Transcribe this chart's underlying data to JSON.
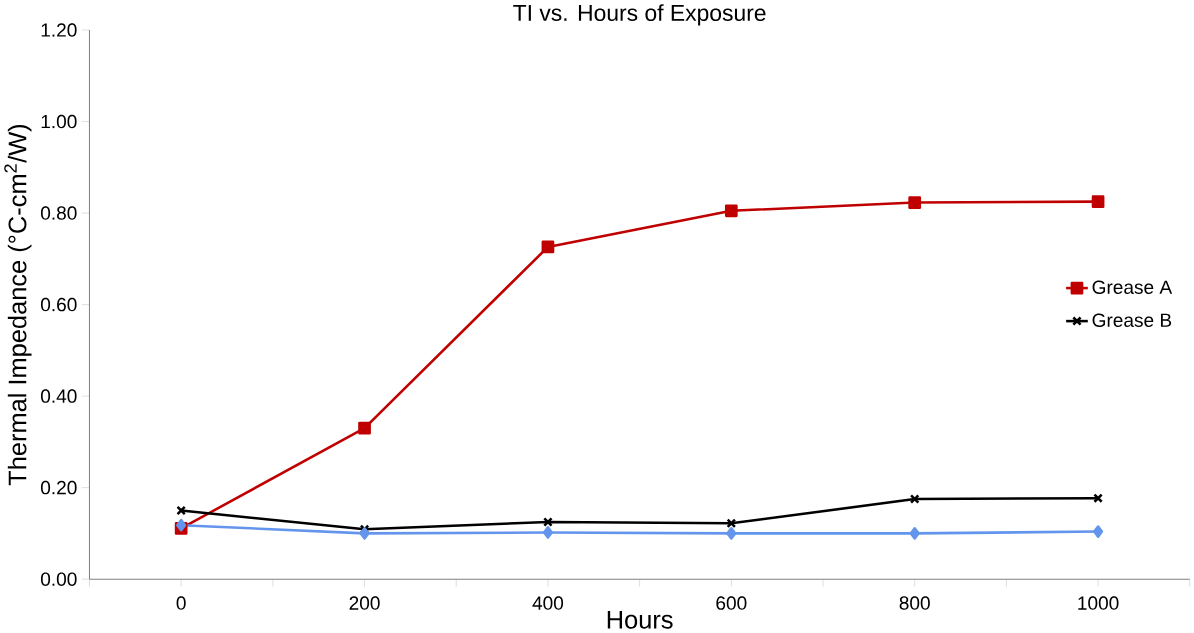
{
  "chart_data": {
    "type": "line",
    "title": "TI vs. Hours of Exposure",
    "xlabel": "Hours",
    "ylabel": "Thermal Impedance (°C-cm$^{2}$/W)",
    "x": [
      0,
      200,
      400,
      600,
      800,
      1000
    ],
    "series": [
      {
        "name": "Grease A",
        "color": "#c00000",
        "marker": "square",
        "values": [
          0.111,
          0.33,
          0.726,
          0.805,
          0.823,
          0.825
        ]
      },
      {
        "name": "Grease B",
        "color": "#000000",
        "marker": "cross",
        "values": [
          0.15,
          0.109,
          0.125,
          0.122,
          0.175,
          0.177
        ]
      },
      {
        "color": "#6495ed",
        "marker": "diamond",
        "values": [
          0.118,
          0.1,
          0.102,
          0.1,
          0.1,
          0.104
        ]
      }
    ],
    "xlim": [
      -100,
      1100
    ],
    "ylim": [
      0,
      1.2
    ],
    "xticks": [
      {
        "value": -100,
        "label": null
      },
      0,
      {
        "value": 100,
        "label": null
      },
      200,
      {
        "value": 300,
        "label": null
      },
      400,
      {
        "value": 500,
        "label": null
      },
      600,
      {
        "value": 700,
        "label": null
      },
      800,
      {
        "value": 900,
        "label": null
      },
      1000,
      {
        "value": 1100,
        "label": null
      }
    ],
    "yticks": [
      {
        "value": 0,
        "label": "0.00"
      },
      {
        "value": 0.2,
        "label": "0.20"
      },
      {
        "value": 0.4,
        "label": "0.40"
      },
      {
        "value": 0.6,
        "label": "0.60"
      },
      {
        "value": 0.8,
        "label": "0.80"
      },
      {
        "value": 1.0,
        "label": "1.00"
      },
      {
        "value": 1.2,
        "label": "1.20"
      }
    ],
    "grid": false,
    "legend": "right",
    "line_style": "solid"
  }
}
